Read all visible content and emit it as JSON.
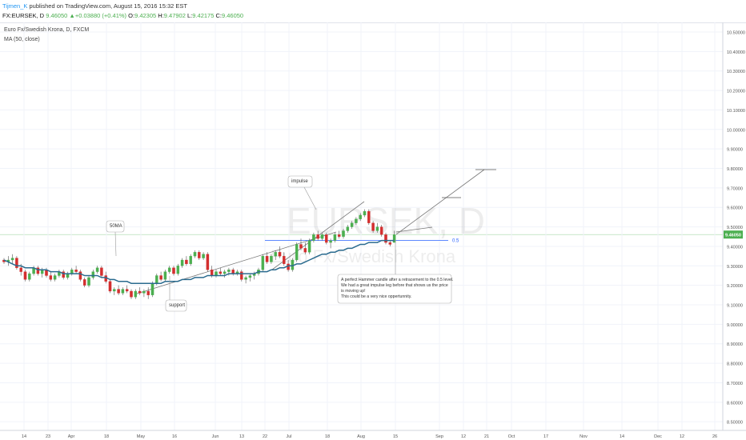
{
  "header": {
    "author": "Tijmen_K",
    "published_text": "published on TradingView.com, August 15, 2016 15:32 EST",
    "symbol": "FX:EURSEK, D",
    "close_val": "9.46050",
    "change": "▲+0.03880 (+0.41%)",
    "open_label": "O:",
    "open_val": "9.42305",
    "high_label": "H:",
    "high_val": "9.47902",
    "low_label": "L:",
    "low_val": "9.42175",
    "close_label": "C:",
    "close_val2": "9.46050"
  },
  "legend": {
    "series_title": "Euro Fx/Swedish Krona, D, FXCM",
    "indicator": "MA (50, close)"
  },
  "watermark": {
    "symbol": "EURSEK, D",
    "name": "Euro Fx/Swedish Krona"
  },
  "colors": {
    "up": "#4caf50",
    "down": "#d32f2f",
    "ma": "#2a6b8f",
    "level": "#2962ff",
    "price_tag": "#4caf50"
  },
  "price_axis": {
    "ticks": [
      "10.50000",
      "10.40000",
      "10.30000",
      "10.20000",
      "10.10000",
      "10.00000",
      "9.90000",
      "9.80000",
      "9.70000",
      "9.60000",
      "9.50000",
      "9.40000",
      "9.30000",
      "9.20000",
      "9.10000",
      "9.00000",
      "8.90000",
      "8.80000",
      "8.70000",
      "8.60000",
      "8.50000"
    ],
    "current_price": "9.46050"
  },
  "time_axis": {
    "labels": [
      "14",
      "23",
      "Apr",
      "18",
      "May",
      "16",
      "Jun",
      "13",
      "22",
      "Jul",
      "18",
      "Aug",
      "15",
      "Sep",
      "12",
      "21",
      "Oct",
      "17",
      "Nov",
      "14",
      "Dec",
      "12",
      "26"
    ]
  },
  "annotations": {
    "ma_label": "50MA",
    "impulse_label": "impulse",
    "support_label": "support",
    "level_label": "0.5",
    "note_lines": [
      "A perfect Hammer candle after a retracement to the 0.5 level.",
      "We had a great impulse leg before that shows us the price",
      "is moving up!",
      "This could be a very nice oppertunnity."
    ]
  },
  "chart_data": {
    "type": "candlestick",
    "price_range": [
      8.5,
      10.55
    ],
    "ma_period": 50,
    "candles": [
      [
        9.33,
        9.34,
        9.31,
        9.32
      ],
      [
        9.32,
        9.35,
        9.3,
        9.33
      ],
      [
        9.33,
        9.36,
        9.31,
        9.34
      ],
      [
        9.34,
        9.35,
        9.28,
        9.29
      ],
      [
        9.29,
        9.31,
        9.25,
        9.27
      ],
      [
        9.27,
        9.28,
        9.22,
        9.23
      ],
      [
        9.23,
        9.27,
        9.22,
        9.26
      ],
      [
        9.26,
        9.3,
        9.25,
        9.29
      ],
      [
        9.29,
        9.3,
        9.25,
        9.26
      ],
      [
        9.26,
        9.29,
        9.24,
        9.28
      ],
      [
        9.28,
        9.29,
        9.24,
        9.25
      ],
      [
        9.25,
        9.27,
        9.22,
        9.23
      ],
      [
        9.23,
        9.26,
        9.22,
        9.25
      ],
      [
        9.25,
        9.28,
        9.24,
        9.27
      ],
      [
        9.27,
        9.28,
        9.23,
        9.24
      ],
      [
        9.24,
        9.27,
        9.23,
        9.26
      ],
      [
        9.26,
        9.29,
        9.25,
        9.28
      ],
      [
        9.28,
        9.3,
        9.26,
        9.27
      ],
      [
        9.27,
        9.28,
        9.22,
        9.23
      ],
      [
        9.23,
        9.24,
        9.19,
        9.2
      ],
      [
        9.2,
        9.25,
        9.19,
        9.24
      ],
      [
        9.24,
        9.28,
        9.23,
        9.27
      ],
      [
        9.27,
        9.3,
        9.26,
        9.29
      ],
      [
        9.29,
        9.3,
        9.24,
        9.25
      ],
      [
        9.25,
        9.27,
        9.21,
        9.22
      ],
      [
        9.22,
        9.23,
        9.16,
        9.17
      ],
      [
        9.17,
        9.19,
        9.15,
        9.18
      ],
      [
        9.18,
        9.2,
        9.15,
        9.16
      ],
      [
        9.16,
        9.19,
        9.15,
        9.18
      ],
      [
        9.18,
        9.2,
        9.16,
        9.17
      ],
      [
        9.17,
        9.18,
        9.13,
        9.14
      ],
      [
        9.14,
        9.18,
        9.13,
        9.17
      ],
      [
        9.17,
        9.19,
        9.15,
        9.16
      ],
      [
        9.16,
        9.18,
        9.14,
        9.17
      ],
      [
        9.17,
        9.19,
        9.13,
        9.15
      ],
      [
        9.15,
        9.22,
        9.14,
        9.21
      ],
      [
        9.21,
        9.26,
        9.2,
        9.25
      ],
      [
        9.25,
        9.27,
        9.22,
        9.23
      ],
      [
        9.23,
        9.28,
        9.22,
        9.27
      ],
      [
        9.27,
        9.3,
        9.26,
        9.29
      ],
      [
        9.29,
        9.3,
        9.25,
        9.26
      ],
      [
        9.26,
        9.31,
        9.25,
        9.3
      ],
      [
        9.3,
        9.34,
        9.29,
        9.33
      ],
      [
        9.33,
        9.35,
        9.3,
        9.31
      ],
      [
        9.31,
        9.36,
        9.3,
        9.35
      ],
      [
        9.35,
        9.38,
        9.34,
        9.37
      ],
      [
        9.37,
        9.38,
        9.33,
        9.34
      ],
      [
        9.34,
        9.37,
        9.33,
        9.36
      ],
      [
        9.36,
        9.37,
        9.27,
        9.28
      ],
      [
        9.28,
        9.3,
        9.24,
        9.25
      ],
      [
        9.25,
        9.28,
        9.24,
        9.27
      ],
      [
        9.27,
        9.29,
        9.25,
        9.26
      ],
      [
        9.26,
        9.28,
        9.24,
        9.27
      ],
      [
        9.27,
        9.29,
        9.25,
        9.28
      ],
      [
        9.28,
        9.29,
        9.25,
        9.26
      ],
      [
        9.26,
        9.28,
        9.25,
        9.27
      ],
      [
        9.27,
        9.28,
        9.22,
        9.23
      ],
      [
        9.23,
        9.25,
        9.21,
        9.24
      ],
      [
        9.24,
        9.26,
        9.22,
        9.25
      ],
      [
        9.25,
        9.27,
        9.23,
        9.26
      ],
      [
        9.26,
        9.29,
        9.25,
        9.28
      ],
      [
        9.28,
        9.36,
        9.27,
        9.35
      ],
      [
        9.35,
        9.37,
        9.31,
        9.32
      ],
      [
        9.32,
        9.36,
        9.31,
        9.35
      ],
      [
        9.35,
        9.38,
        9.33,
        9.37
      ],
      [
        9.37,
        9.4,
        9.34,
        9.35
      ],
      [
        9.35,
        9.37,
        9.3,
        9.31
      ],
      [
        9.31,
        9.33,
        9.27,
        9.28
      ],
      [
        9.28,
        9.34,
        9.27,
        9.33
      ],
      [
        9.33,
        9.42,
        9.32,
        9.41
      ],
      [
        9.41,
        9.44,
        9.38,
        9.39
      ],
      [
        9.39,
        9.42,
        9.36,
        9.37
      ],
      [
        9.37,
        9.44,
        9.36,
        9.43
      ],
      [
        9.43,
        9.47,
        9.42,
        9.46
      ],
      [
        9.46,
        9.48,
        9.43,
        9.44
      ],
      [
        9.44,
        9.47,
        9.43,
        9.46
      ],
      [
        9.46,
        9.47,
        9.41,
        9.42
      ],
      [
        9.42,
        9.44,
        9.39,
        9.43
      ],
      [
        9.43,
        9.47,
        9.42,
        9.46
      ],
      [
        9.46,
        9.48,
        9.44,
        9.45
      ],
      [
        9.45,
        9.49,
        9.44,
        9.48
      ],
      [
        9.48,
        9.51,
        9.47,
        9.5
      ],
      [
        9.5,
        9.53,
        9.49,
        9.52
      ],
      [
        9.52,
        9.55,
        9.51,
        9.54
      ],
      [
        9.54,
        9.57,
        9.53,
        9.56
      ],
      [
        9.56,
        9.59,
        9.55,
        9.58
      ],
      [
        9.58,
        9.59,
        9.51,
        9.52
      ],
      [
        9.52,
        9.53,
        9.47,
        9.48
      ],
      [
        9.48,
        9.52,
        9.47,
        9.5
      ],
      [
        9.5,
        9.51,
        9.45,
        9.46
      ],
      [
        9.46,
        9.47,
        9.41,
        9.42
      ],
      [
        9.42,
        9.43,
        9.4,
        9.41
      ],
      [
        9.42,
        9.48,
        9.42,
        9.46
      ]
    ],
    "ma_values": [
      9.33,
      9.32,
      9.31,
      9.3,
      9.3,
      9.29,
      9.29,
      9.29,
      9.28,
      9.28,
      9.28,
      9.27,
      9.27,
      9.27,
      9.26,
      9.26,
      9.26,
      9.26,
      9.26,
      9.25,
      9.25,
      9.25,
      9.25,
      9.24,
      9.24,
      9.23,
      9.23,
      9.22,
      9.22,
      9.22,
      9.21,
      9.21,
      9.21,
      9.21,
      9.21,
      9.21,
      9.21,
      9.21,
      9.22,
      9.22,
      9.22,
      9.22,
      9.23,
      9.23,
      9.23,
      9.24,
      9.24,
      9.24,
      9.25,
      9.25,
      9.25,
      9.25,
      9.25,
      9.26,
      9.26,
      9.26,
      9.26,
      9.26,
      9.26,
      9.26,
      9.27,
      9.27,
      9.27,
      9.28,
      9.28,
      9.29,
      9.29,
      9.3,
      9.3,
      9.31,
      9.31,
      9.32,
      9.33,
      9.34,
      9.35,
      9.36,
      9.36,
      9.37,
      9.37,
      9.38,
      9.38,
      9.39,
      9.39,
      9.4,
      9.41,
      9.41,
      9.42,
      9.42,
      9.42,
      9.43,
      9.43,
      9.43,
      9.43
    ],
    "level_05": 9.43
  }
}
